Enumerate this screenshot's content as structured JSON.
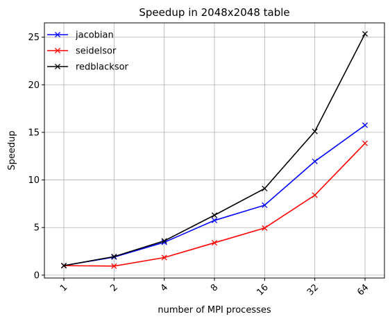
{
  "chart_data": {
    "type": "line",
    "title": "Speedup in 2048x2048 table",
    "xlabel": "number of MPI processes",
    "ylabel": "Speedup",
    "categories": [
      "1",
      "2",
      "4",
      "8",
      "16",
      "32",
      "64"
    ],
    "ylim": [
      -0.3,
      26.5
    ],
    "yticks": [
      0,
      5,
      10,
      15,
      20,
      25
    ],
    "grid": true,
    "legend_position": "top-left",
    "marker": "x",
    "series": [
      {
        "name": "jacobian",
        "color": "#0000ff",
        "values": [
          1.0,
          1.9,
          3.45,
          5.75,
          7.35,
          11.95,
          15.75
        ]
      },
      {
        "name": "seidelsor",
        "color": "#ff0000",
        "values": [
          1.0,
          0.95,
          1.85,
          3.4,
          4.95,
          8.4,
          13.85
        ]
      },
      {
        "name": "redblacksor",
        "color": "#000000",
        "values": [
          1.0,
          1.95,
          3.6,
          6.3,
          9.1,
          15.1,
          25.35
        ]
      }
    ]
  }
}
